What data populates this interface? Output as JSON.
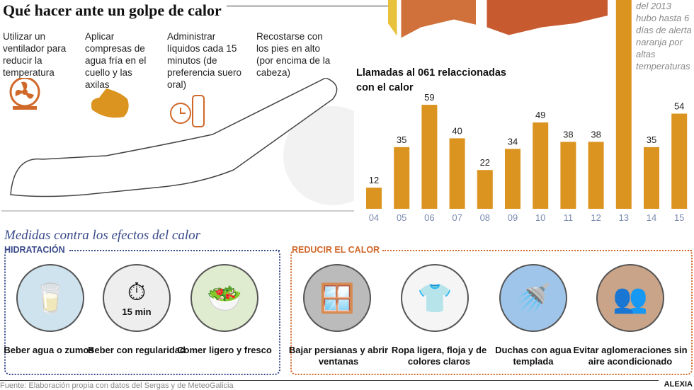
{
  "title": "Qué hacer ante un golpe de calor",
  "steps": [
    {
      "text": "Utilizar un ventilador para reducir la temperatura",
      "icon": "fan-icon"
    },
    {
      "text": "Aplicar compresas de agua fría en el cuello y las axilas",
      "icon": "compress-icon"
    },
    {
      "text": "Administrar líquidos cada 15 minutos (de preferencia suero oral)",
      "icon": "clock-bottle-icon"
    },
    {
      "text": "Recostarse con los pies en alto (por encima de la cabeza)",
      "icon": "person-legs-raised-icon"
    }
  ],
  "note": "del 2013 hubo hasta 6 días de alerta naranja por altas temperaturas",
  "colors": {
    "bar": "#DC9420",
    "orange": "#D0682A",
    "blue": "#3A4A8A",
    "axis_label": "#7A8AB0"
  },
  "chart_data": {
    "type": "bar",
    "title": "Llamadas al 061 relaccionadas con el calor",
    "categories": [
      "04",
      "05",
      "06",
      "07",
      "08",
      "09",
      "10",
      "11",
      "12",
      "13",
      "14",
      "15"
    ],
    "values": [
      12,
      35,
      59,
      40,
      22,
      34,
      49,
      38,
      38,
      null,
      35,
      54
    ],
    "grid": false
  },
  "measures_title": "Medidas contra los efectos del calor",
  "hydration": {
    "title": "HIDRATACIÓN",
    "items": [
      {
        "label": "Beber agua o zumos",
        "icon": "water-glass-icon"
      },
      {
        "label": "Beber con regularidad",
        "icon": "stopwatch-icon",
        "badge": "15 min"
      },
      {
        "label": "Comer ligero y fresco",
        "icon": "salad-icon"
      }
    ]
  },
  "reduce": {
    "title": "REDUCIR EL CALOR",
    "items": [
      {
        "label": "Bajar persianas y abrir ventanas",
        "icon": "window-blinds-icon"
      },
      {
        "label": "Ropa ligera, floja y de colores claros",
        "icon": "shirt-icon"
      },
      {
        "label": "Duchas con agua templada",
        "icon": "shower-icon"
      },
      {
        "label": "Evitar aglomeraciones sin aire acondicionado",
        "icon": "crowd-icon"
      }
    ]
  },
  "footer": "Fuente: Elaboración propia con datos del Sergas y de MeteoGalicia",
  "credit": "ALEXIA"
}
